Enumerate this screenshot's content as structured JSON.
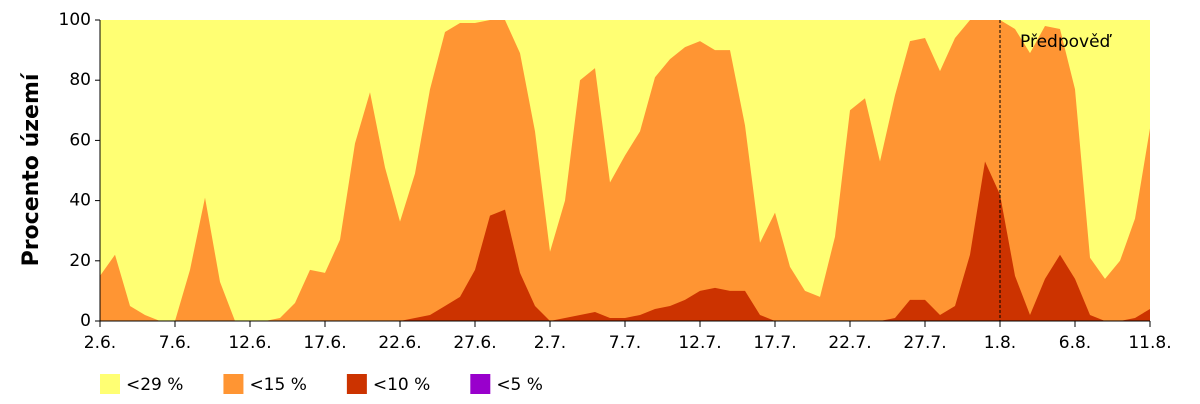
{
  "chart_data": {
    "type": "area",
    "y_label": "Procento území",
    "categories": [
      "2.6.",
      null,
      null,
      null,
      null,
      "7.6.",
      null,
      null,
      null,
      null,
      "12.6.",
      null,
      null,
      null,
      null,
      "17.6.",
      null,
      null,
      null,
      null,
      "22.6.",
      null,
      null,
      null,
      null,
      "27.6.",
      null,
      null,
      null,
      null,
      "2.7.",
      null,
      null,
      null,
      null,
      "7.7.",
      null,
      null,
      null,
      null,
      "12.7.",
      null,
      null,
      null,
      null,
      "17.7.",
      null,
      null,
      null,
      null,
      "22.7.",
      null,
      null,
      null,
      null,
      "27.7.",
      null,
      null,
      null,
      null,
      "1.8.",
      null,
      null,
      null,
      null,
      "6.8.",
      null,
      null,
      null,
      null,
      "11.8."
    ],
    "series": [
      {
        "name": "<29 %",
        "color": "#ffff73",
        "values": [
          100,
          100,
          100,
          100,
          100,
          100,
          100,
          100,
          100,
          100,
          100,
          100,
          100,
          100,
          100,
          100,
          100,
          100,
          100,
          100,
          100,
          100,
          100,
          100,
          100,
          100,
          100,
          100,
          100,
          100,
          100,
          100,
          100,
          100,
          100,
          100,
          100,
          100,
          100,
          100,
          100,
          100,
          100,
          100,
          100,
          100,
          100,
          100,
          100,
          100,
          100,
          100,
          100,
          100,
          100,
          100,
          100,
          100,
          100,
          100,
          100,
          100,
          100,
          100,
          100,
          100,
          100,
          100,
          100,
          100,
          100
        ]
      },
      {
        "name": "<15 %",
        "color": "#ff9533",
        "values": [
          15,
          22,
          5,
          2,
          0,
          0,
          17,
          41,
          13,
          0,
          0,
          0,
          1,
          6,
          17,
          16,
          27,
          59,
          76,
          51,
          33,
          49,
          77,
          96,
          99,
          99,
          100,
          100,
          89,
          63,
          23,
          40,
          80,
          84,
          46,
          55,
          63,
          81,
          87,
          91,
          93,
          90,
          90,
          65,
          26,
          36,
          18,
          10,
          8,
          28,
          70,
          74,
          53,
          75,
          93,
          94,
          83,
          94,
          100,
          100,
          100,
          97,
          89,
          98,
          97,
          77,
          21,
          14,
          20,
          34,
          64
        ]
      },
      {
        "name": "<10 %",
        "color": "#cc3300",
        "values": [
          0,
          0,
          0,
          0,
          0,
          0,
          0,
          0,
          0,
          0,
          0,
          0,
          0,
          0,
          0,
          0,
          0,
          0,
          0,
          0,
          0,
          1,
          2,
          5,
          8,
          17,
          35,
          37,
          16,
          5,
          0,
          1,
          2,
          3,
          1,
          1,
          2,
          4,
          5,
          7,
          10,
          11,
          10,
          10,
          2,
          0,
          0,
          0,
          0,
          0,
          0,
          0,
          0,
          1,
          7,
          7,
          2,
          5,
          22,
          53,
          42,
          15,
          2,
          14,
          22,
          14,
          2,
          0,
          0,
          1,
          4
        ]
      },
      {
        "name": "<5 %",
        "color": "#9900cc",
        "values": [
          0,
          0,
          0,
          0,
          0,
          0,
          0,
          0,
          0,
          0,
          0,
          0,
          0,
          0,
          0,
          0,
          0,
          0,
          0,
          0,
          0,
          0,
          0,
          0,
          0,
          0,
          0,
          0,
          0,
          0,
          0,
          0,
          0,
          0,
          0,
          0,
          0,
          0,
          0,
          0,
          0,
          0,
          0,
          0,
          0,
          0,
          0,
          0,
          0,
          0,
          0,
          0,
          0,
          0,
          0,
          0,
          0,
          0,
          0,
          0,
          0,
          0,
          0,
          0,
          0,
          0,
          0,
          0,
          0,
          0,
          0
        ]
      }
    ],
    "ylim": [
      0,
      100
    ],
    "yticks": [
      0,
      20,
      40,
      60,
      80,
      100
    ],
    "annotation": {
      "text": "Předpověď",
      "x": "1.8."
    },
    "legend": "bottom"
  }
}
